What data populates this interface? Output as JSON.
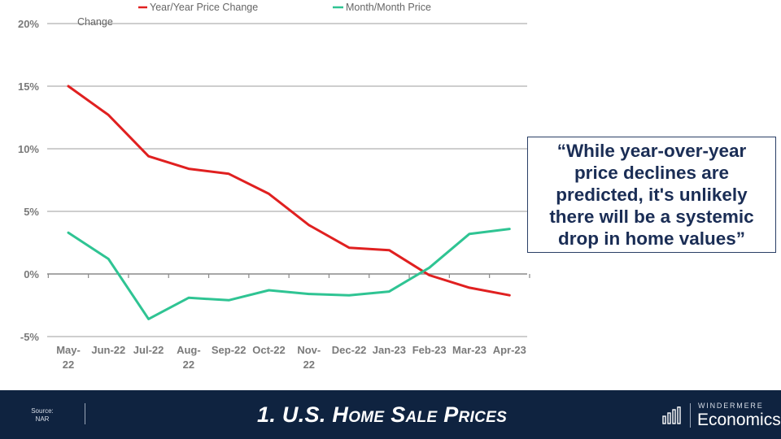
{
  "chart_data": {
    "type": "line",
    "categories": [
      "May-22",
      "Jun-22",
      "Jul-22",
      "Aug-22",
      "Sep-22",
      "Oct-22",
      "Nov-22",
      "Dec-22",
      "Jan-23",
      "Feb-23",
      "Mar-23",
      "Apr-23"
    ],
    "category_lines": [
      [
        "May-",
        "22"
      ],
      [
        "Jun-22"
      ],
      [
        "Jul-22"
      ],
      [
        "Aug-",
        "22"
      ],
      [
        "Sep-22"
      ],
      [
        "Oct-22"
      ],
      [
        "Nov-",
        "22"
      ],
      [
        "Dec-22"
      ],
      [
        "Jan-23"
      ],
      [
        "Feb-23"
      ],
      [
        "Mar-23"
      ],
      [
        "Apr-23"
      ]
    ],
    "series": [
      {
        "name": "Year/Year Price Change",
        "color": "#e02020",
        "values": [
          15.0,
          12.7,
          9.4,
          8.4,
          8.0,
          6.4,
          3.9,
          2.1,
          1.9,
          -0.1,
          -1.1,
          -1.7
        ]
      },
      {
        "name": "Month/Month Price Change",
        "color": "#2fc493",
        "values": [
          3.3,
          1.2,
          -3.6,
          -1.9,
          -2.1,
          -1.3,
          -1.6,
          -1.7,
          -1.4,
          0.5,
          3.2,
          3.6
        ]
      }
    ],
    "legend": {
      "position": "top",
      "series_1_label": "Year/Year Price Change",
      "series_2_label": "Month/Month Price",
      "series_2_label_continued": "Change"
    },
    "y_ticks": [
      "20%",
      "15%",
      "10%",
      "5%",
      "0%",
      "-5%"
    ],
    "y_tick_values": [
      20,
      15,
      10,
      5,
      0,
      -5
    ],
    "ylim": [
      -5,
      20
    ],
    "grid": true,
    "xlabel": "",
    "ylabel": ""
  },
  "callout": {
    "quote": "“While year-over-year price declines are predicted, it's unlikely there will be a systemic drop in home values”"
  },
  "footer": {
    "source_label": "Source:",
    "source_value": "NAR",
    "title": "1.  U.S. Home Sale Prices",
    "brand_top": "WINDERMERE",
    "brand_bottom": "Economics",
    "brand_icon": "bar-chart-icon"
  },
  "colors": {
    "footer_bg": "#0f2340",
    "quote_text": "#1a2d55",
    "grid": "#bdbdbd"
  }
}
